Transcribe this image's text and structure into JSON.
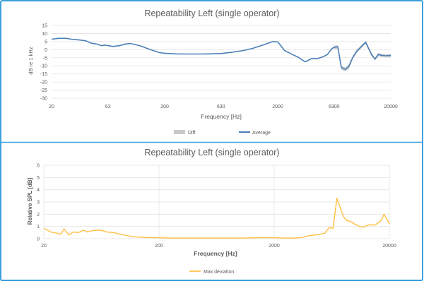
{
  "colors": {
    "frame": "#3aa0dc",
    "average": "#4a7fb8",
    "diff": "#c9c9c9",
    "max_deviation": "#ffc34d",
    "grid": "#e3e3e3",
    "text": "#595959"
  },
  "chart_data": [
    {
      "type": "line",
      "title": "Repeatability Left (single operator)",
      "xlabel": "Frequency [Hz]",
      "ylabel": "dB re 1 kHz",
      "x_scale": "log",
      "xlim": [
        20,
        20000
      ],
      "ylim": [
        -30,
        15
      ],
      "grid": "horizontal",
      "legend_position": "bottom",
      "x_ticks": [
        20,
        63,
        200,
        630,
        2000,
        6300,
        20000
      ],
      "x_tick_labels": [
        "20",
        "63",
        "200",
        "630",
        "2000",
        "6300",
        "20000"
      ],
      "y_ticks": [
        15,
        10,
        5,
        0,
        -5,
        -10,
        -15,
        -20,
        -25,
        -30
      ],
      "y_tick_labels": [
        "15",
        "10",
        "5",
        "0",
        "-5",
        "-10",
        "-15",
        "-20",
        "-25",
        "-30"
      ],
      "series": [
        {
          "name": "Diff",
          "style": "band",
          "x": [
            6300,
            6800,
            7300,
            7900,
            8500,
            9200,
            10000,
            11000,
            12000,
            13500,
            14500,
            15500,
            16500,
            18000,
            20000
          ],
          "upper": [
            2.5,
            2.8,
            -10,
            -11,
            -9,
            -4,
            0,
            3,
            5.5,
            -2,
            -5,
            -2,
            -2.5,
            -2.8,
            -2.5
          ],
          "lower": [
            0.3,
            0.5,
            -12.5,
            -13.5,
            -12,
            -6,
            -2,
            1,
            3.5,
            -4,
            -6.5,
            -4,
            -4.5,
            -4.5,
            -4.8
          ]
        },
        {
          "name": "Average",
          "style": "line",
          "x": [
            20,
            23,
            27,
            30,
            35,
            40,
            45,
            50,
            55,
            60,
            63,
            70,
            80,
            90,
            100,
            120,
            150,
            180,
            200,
            250,
            300,
            400,
            500,
            630,
            800,
            1000,
            1200,
            1500,
            1800,
            2000,
            2300,
            2700,
            3000,
            3500,
            4000,
            4500,
            5000,
            5500,
            6000,
            6300,
            6800,
            7300,
            7900,
            8500,
            9200,
            10000,
            11000,
            12000,
            13500,
            14500,
            15500,
            16500,
            18000,
            20000
          ],
          "y": [
            6.5,
            7,
            7,
            6.5,
            6,
            5.5,
            4,
            3.5,
            2.5,
            2.8,
            2.5,
            2,
            2.5,
            3.5,
            3.8,
            2.5,
            0,
            -1.8,
            -2.2,
            -2.6,
            -2.7,
            -2.7,
            -2.6,
            -2.4,
            -1.5,
            -0.5,
            0.8,
            3,
            5,
            4.8,
            -0.5,
            -3,
            -4.5,
            -7.5,
            -5.5,
            -5.5,
            -4.5,
            -3,
            0.5,
            1.5,
            1.8,
            -11,
            -12.2,
            -10.5,
            -5,
            -1,
            2,
            4.5,
            -3,
            -5.8,
            -3,
            -3.5,
            -3.8,
            -3.6
          ]
        }
      ]
    },
    {
      "type": "line",
      "title": "Repeatability Left (single operator)",
      "xlabel": "Frequency [Hz]",
      "ylabel": "Relative SPL [dB]",
      "x_scale": "log",
      "xlim": [
        20,
        20000
      ],
      "ylim": [
        0,
        6
      ],
      "grid": "horizontal and decade vertical",
      "legend_position": "bottom",
      "x_ticks": [
        20,
        200,
        2000,
        20000
      ],
      "x_tick_labels": [
        "20",
        "200",
        "2000",
        "20000"
      ],
      "y_ticks": [
        6,
        5,
        4,
        3,
        2,
        1,
        0
      ],
      "y_tick_labels": [
        "6",
        "5",
        "4",
        "3",
        "2",
        "1",
        "0"
      ],
      "series": [
        {
          "name": "Max deviation",
          "style": "line",
          "x": [
            20,
            23,
            26,
            28,
            30,
            33,
            36,
            40,
            44,
            48,
            52,
            56,
            60,
            65,
            70,
            80,
            100,
            120,
            150,
            200,
            250,
            300,
            400,
            600,
            800,
            1000,
            1500,
            2000,
            2500,
            3000,
            3500,
            4000,
            4500,
            5000,
            5500,
            6000,
            6500,
            7000,
            7500,
            8000,
            8500,
            9200,
            10000,
            11000,
            12000,
            13000,
            14000,
            15000,
            16000,
            17000,
            18000,
            20000
          ],
          "y": [
            0.85,
            0.55,
            0.45,
            0.35,
            0.8,
            0.3,
            0.55,
            0.5,
            0.7,
            0.55,
            0.65,
            0.68,
            0.7,
            0.65,
            0.55,
            0.5,
            0.3,
            0.15,
            0.1,
            0.08,
            0.05,
            0.05,
            0.05,
            0.05,
            0.05,
            0.05,
            0.08,
            0.08,
            0.05,
            0.05,
            0.1,
            0.25,
            0.3,
            0.35,
            0.45,
            0.9,
            0.85,
            3.3,
            2.5,
            1.8,
            1.5,
            1.4,
            1.2,
            1.0,
            0.95,
            1.1,
            1.15,
            1.1,
            1.3,
            1.5,
            2.0,
            1.2
          ]
        }
      ]
    }
  ]
}
